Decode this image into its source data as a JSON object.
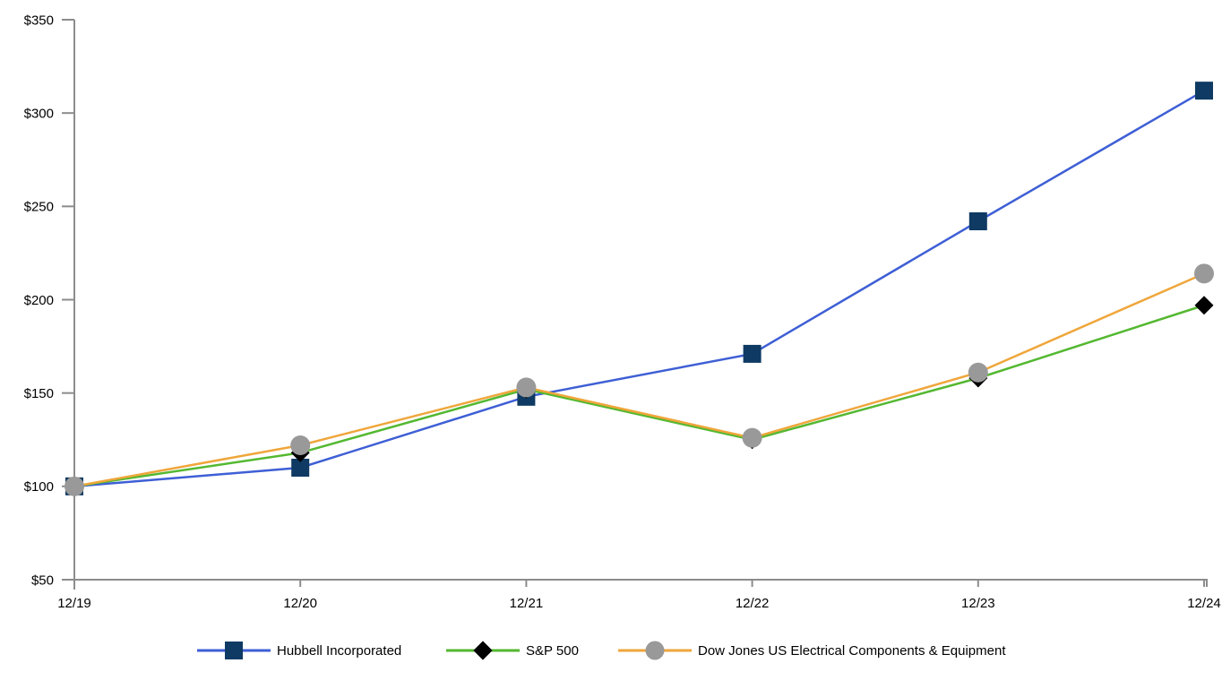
{
  "chart_data": {
    "type": "line",
    "title": "",
    "categories": [
      "12/19",
      "12/20",
      "12/21",
      "12/22",
      "12/23",
      "12/24"
    ],
    "y_tick_labels": [
      "$50",
      "$100",
      "$150",
      "$200",
      "$250",
      "$300",
      "$350"
    ],
    "ylim": [
      50,
      350
    ],
    "y_step": 50,
    "grid": false,
    "legend_position": "bottom",
    "axis_color": "#8C8C8C",
    "text_color": "#000000",
    "series": [
      {
        "name": "Hubbell Incorporated",
        "marker": "square",
        "line_color": "#3E5FD5",
        "marker_color": "#0E3A63",
        "values": [
          100,
          110,
          148,
          171,
          242,
          312
        ]
      },
      {
        "name": "S&P 500",
        "marker": "diamond",
        "line_color": "#54B831",
        "marker_color": "#000000",
        "values": [
          100,
          118,
          152,
          125,
          158,
          197
        ]
      },
      {
        "name": "Dow Jones US Electrical Components & Equipment",
        "marker": "circle",
        "line_color": "#EFA63B",
        "marker_color": "#999999",
        "values": [
          100,
          122,
          153,
          126,
          161,
          214
        ]
      }
    ]
  }
}
